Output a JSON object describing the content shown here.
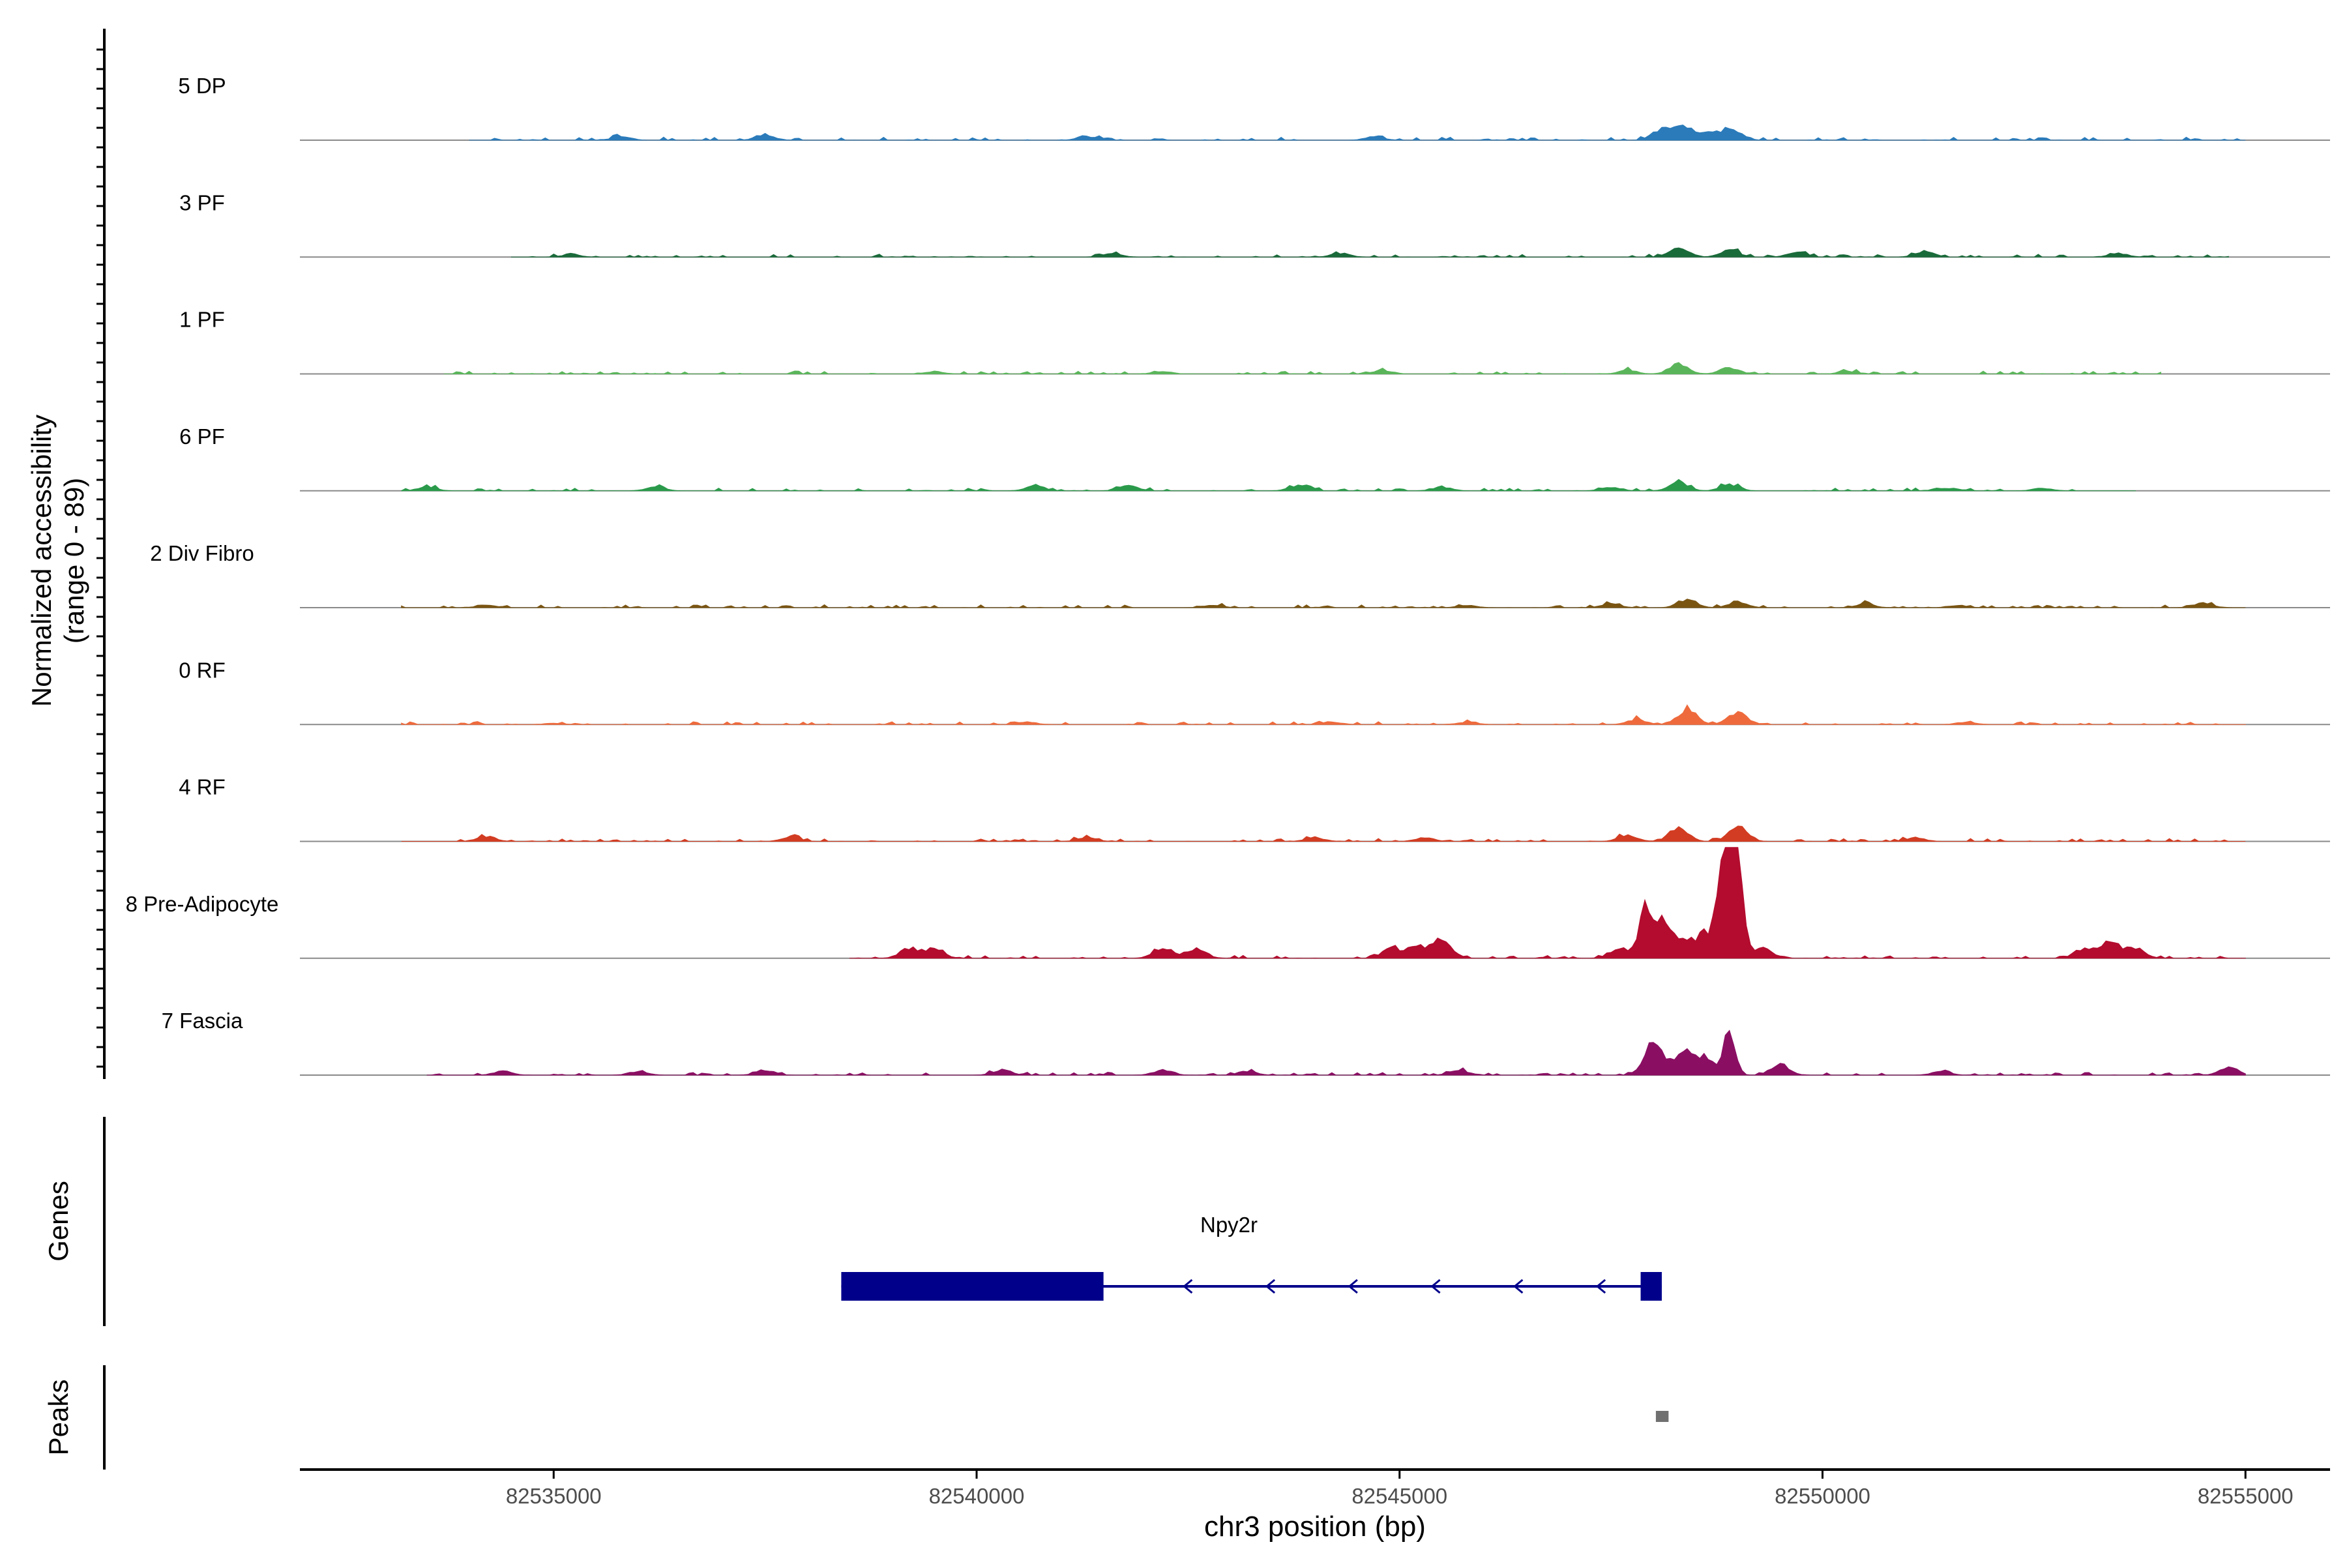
{
  "chart_data": {
    "type": "area",
    "title": "",
    "ylabel_line1": "Normalized accessibility",
    "ylabel_line2": "(range 0 - 89)",
    "y_range": [
      0,
      89
    ],
    "xlabel": "chr3 position (bp)",
    "x_range": [
      82532000,
      82556000
    ],
    "x_ticks": [
      82535000,
      82540000,
      82545000,
      82550000,
      82555000
    ],
    "x_tick_labels": [
      "82535000",
      "82540000",
      "82545000",
      "82550000",
      "82555000"
    ],
    "tracks": [
      {
        "name": "5 DP",
        "color": "#2b7bba",
        "data_range": [
          82534000,
          82555000
        ],
        "peaks": [
          [
            82548350,
            12
          ],
          [
            82548100,
            8
          ],
          [
            82548700,
            7
          ],
          [
            82548950,
            8
          ],
          [
            82537500,
            4
          ],
          [
            82541300,
            3
          ],
          [
            82544700,
            3
          ],
          [
            82535800,
            3
          ]
        ]
      },
      {
        "name": "3 PF",
        "color": "#1a6b3a",
        "data_range": [
          82534500,
          82554800
        ],
        "peaks": [
          [
            82548300,
            8
          ],
          [
            82548900,
            6
          ],
          [
            82549700,
            4
          ],
          [
            82551200,
            4
          ],
          [
            82544300,
            3
          ],
          [
            82541600,
            3
          ],
          [
            82535200,
            2
          ],
          [
            82553500,
            3
          ]
        ]
      },
      {
        "name": "1 PF",
        "color": "#5ab55a",
        "data_range": [
          82533700,
          82554000
        ],
        "peaks": [
          [
            82548300,
            8
          ],
          [
            82548900,
            5
          ],
          [
            82547700,
            3
          ],
          [
            82544800,
            3
          ],
          [
            82542200,
            2
          ],
          [
            82550300,
            2
          ],
          [
            82539500,
            2
          ]
        ]
      },
      {
        "name": "6 PF",
        "color": "#2a9a4a",
        "data_range": [
          82533200,
          82553700
        ],
        "peaks": [
          [
            82548300,
            7
          ],
          [
            82548900,
            5
          ],
          [
            82540700,
            4
          ],
          [
            82541800,
            4
          ],
          [
            82543800,
            4
          ],
          [
            82545500,
            3
          ],
          [
            82547500,
            3
          ],
          [
            82533500,
            3
          ],
          [
            82536200,
            3
          ],
          [
            82551500,
            2
          ],
          [
            82552600,
            2
          ]
        ]
      },
      {
        "name": "2 Div Fibro",
        "color": "#7a5512",
        "data_range": [
          82533200,
          82555000
        ],
        "peaks": [
          [
            82548400,
            6
          ],
          [
            82549000,
            5
          ],
          [
            82554500,
            4
          ],
          [
            82547500,
            3
          ],
          [
            82550500,
            3
          ],
          [
            82545800,
            2
          ],
          [
            82551600,
            2
          ],
          [
            82534200,
            2
          ],
          [
            82542800,
            2
          ]
        ]
      },
      {
        "name": "0 RF",
        "color": "#ee6a3c",
        "data_range": [
          82533200,
          82555000
        ],
        "peaks": [
          [
            82548400,
            12
          ],
          [
            82549000,
            10
          ],
          [
            82547800,
            4
          ],
          [
            82540600,
            2
          ],
          [
            82544200,
            2
          ],
          [
            82545800,
            2
          ],
          [
            82551700,
            2
          ],
          [
            82535000,
            1
          ]
        ]
      },
      {
        "name": "4 RF",
        "color": "#d23c22",
        "data_range": [
          82533200,
          82555000
        ],
        "peaks": [
          [
            82548300,
            11
          ],
          [
            82549000,
            12
          ],
          [
            82547700,
            5
          ],
          [
            82534200,
            4
          ],
          [
            82537800,
            3
          ],
          [
            82541300,
            3
          ],
          [
            82545300,
            3
          ],
          [
            82544000,
            3
          ],
          [
            82551100,
            3
          ]
        ]
      },
      {
        "name": "8 Pre-Adipocyte",
        "color": "#b30c2e",
        "data_range": [
          82538500,
          82555000
        ],
        "peaks": [
          [
            82548900,
            89
          ],
          [
            82549000,
            60
          ],
          [
            82548800,
            50
          ],
          [
            82547900,
            40
          ],
          [
            82548100,
            34
          ],
          [
            82548300,
            18
          ],
          [
            82548600,
            20
          ],
          [
            82549300,
            8
          ],
          [
            82547600,
            8
          ],
          [
            82545500,
            16
          ],
          [
            82545200,
            10
          ],
          [
            82544900,
            8
          ],
          [
            82539500,
            8
          ],
          [
            82539200,
            8
          ],
          [
            82542200,
            8
          ],
          [
            82542600,
            8
          ],
          [
            82553400,
            14
          ],
          [
            82553100,
            8
          ],
          [
            82553700,
            8
          ]
        ]
      },
      {
        "name": "7 Fascia",
        "color": "#8a0f63",
        "data_range": [
          82533500,
          82555000
        ],
        "peaks": [
          [
            82548900,
            34
          ],
          [
            82548000,
            26
          ],
          [
            82548350,
            18
          ],
          [
            82548600,
            14
          ],
          [
            82549500,
            8
          ],
          [
            82554800,
            6
          ],
          [
            82537500,
            4
          ],
          [
            82540300,
            4
          ],
          [
            82542200,
            4
          ],
          [
            82545700,
            4
          ],
          [
            82534400,
            3
          ],
          [
            82536000,
            3
          ],
          [
            82543200,
            3
          ],
          [
            82551400,
            3
          ]
        ]
      }
    ],
    "genes_label": "Genes",
    "gene": {
      "name": "Npy2r",
      "strand": "-",
      "color": "#00008b",
      "start": 82538400,
      "end": 82548100,
      "exons": [
        [
          82538400,
          82541500
        ],
        [
          82547850,
          82548100
        ]
      ]
    },
    "peaks_label": "Peaks",
    "peak_regions": [
      [
        82548030,
        82548180
      ]
    ],
    "peak_color": "#707070"
  }
}
